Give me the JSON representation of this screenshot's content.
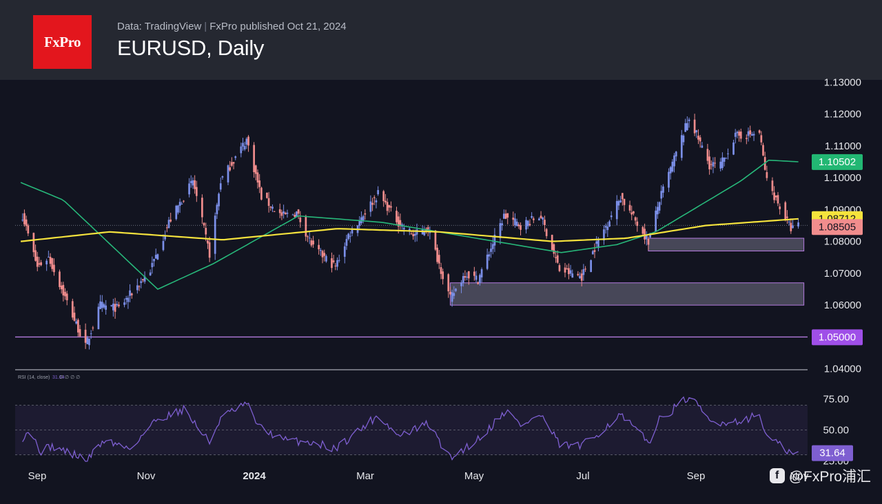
{
  "header": {
    "logo_text": "FxPro",
    "source": "Data: TradingView",
    "published": "FxPro published Oct 21, 2024",
    "title": "EURUSD, Daily"
  },
  "watermark": "@FxPro浦汇",
  "colors": {
    "background": "#121420",
    "header_bg": "#252831",
    "up_candle": "#7b8fe8",
    "down_candle": "#f08c8c",
    "ma_long": "#f4e23d",
    "ma_short": "#27b87a",
    "zone": "#b57be0",
    "rsi_line": "#7e5fd1",
    "logo_red": "#e3161d"
  },
  "chart_data": {
    "type": "candlestick",
    "title": "EURUSD, Daily",
    "price_axis": {
      "ylim": [
        1.0395,
        1.1305
      ],
      "ticks": [
        "1.04000",
        "1.05000",
        "1.06000",
        "1.07000",
        "1.08000",
        "1.09000",
        "1.10000",
        "1.11000",
        "1.12000",
        "1.13000"
      ]
    },
    "x_labels": [
      "Sep",
      "Nov",
      "2024",
      "Mar",
      "May",
      "Jul",
      "Sep",
      "Nov"
    ],
    "price_anchors": [
      [
        "2023-08-29",
        1.0882
      ],
      [
        "2023-09-06",
        1.072
      ],
      [
        "2023-09-12",
        1.075
      ],
      [
        "2023-10-02",
        1.047
      ],
      [
        "2023-10-10",
        1.06
      ],
      [
        "2023-10-20",
        1.059
      ],
      [
        "2023-11-06",
        1.071
      ],
      [
        "2023-11-16",
        1.086
      ],
      [
        "2023-11-29",
        1.099
      ],
      [
        "2023-12-08",
        1.076
      ],
      [
        "2023-12-14",
        1.099
      ],
      [
        "2023-12-28",
        1.112
      ],
      [
        "2024-01-05",
        1.094
      ],
      [
        "2024-01-16",
        1.088
      ],
      [
        "2024-01-24",
        1.089
      ],
      [
        "2024-02-02",
        1.078
      ],
      [
        "2024-02-14",
        1.072
      ],
      [
        "2024-02-21",
        1.082
      ],
      [
        "2024-03-08",
        1.095
      ],
      [
        "2024-03-19",
        1.086
      ],
      [
        "2024-03-27",
        1.082
      ],
      [
        "2024-04-04",
        1.084
      ],
      [
        "2024-04-16",
        1.062
      ],
      [
        "2024-04-24",
        1.07
      ],
      [
        "2024-05-01",
        1.068
      ],
      [
        "2024-05-15",
        1.088
      ],
      [
        "2024-05-24",
        1.085
      ],
      [
        "2024-06-04",
        1.088
      ],
      [
        "2024-06-14",
        1.071
      ],
      [
        "2024-06-26",
        1.069
      ],
      [
        "2024-07-03",
        1.078
      ],
      [
        "2024-07-17",
        1.094
      ],
      [
        "2024-08-01",
        1.08
      ],
      [
        "2024-08-07",
        1.093
      ],
      [
        "2024-08-23",
        1.119
      ],
      [
        "2024-09-03",
        1.104
      ],
      [
        "2024-09-09",
        1.104
      ],
      [
        "2024-09-17",
        1.113
      ],
      [
        "2024-09-30",
        1.114
      ],
      [
        "2024-10-04",
        1.099
      ],
      [
        "2024-10-17",
        1.084
      ],
      [
        "2024-10-21",
        1.085
      ]
    ],
    "ma_long_anchors": [
      [
        "2023-08-28",
        1.08
      ],
      [
        "2023-10-15",
        1.083
      ],
      [
        "2023-12-15",
        1.0805
      ],
      [
        "2024-02-15",
        1.084
      ],
      [
        "2024-04-10",
        1.083
      ],
      [
        "2024-06-10",
        1.08
      ],
      [
        "2024-07-20",
        1.081
      ],
      [
        "2024-09-01",
        1.085
      ],
      [
        "2024-10-21",
        1.0871
      ]
    ],
    "ma_short_anchors": [
      [
        "2023-08-28",
        1.0985
      ],
      [
        "2023-09-20",
        1.093
      ],
      [
        "2023-11-10",
        1.065
      ],
      [
        "2023-12-10",
        1.073
      ],
      [
        "2024-01-25",
        1.088
      ],
      [
        "2024-03-10",
        1.086
      ],
      [
        "2024-04-25",
        1.0815
      ],
      [
        "2024-06-15",
        1.0765
      ],
      [
        "2024-07-15",
        1.079
      ],
      [
        "2024-08-05",
        1.083
      ],
      [
        "2024-09-20",
        1.099
      ],
      [
        "2024-10-05",
        1.1055
      ],
      [
        "2024-10-21",
        1.105
      ]
    ],
    "levels": [
      {
        "price": 1.05,
        "label": "1.05000"
      }
    ],
    "zones": [
      {
        "from": "2024-04-16",
        "to": "2024-10-24",
        "low": 1.06,
        "high": 1.067
      },
      {
        "from": "2024-08-01",
        "to": "2024-10-24",
        "low": 1.077,
        "high": 1.081
      }
    ],
    "last_values": {
      "ma_short": {
        "value": 1.10502,
        "label": "1.10502"
      },
      "ma_long": {
        "value": 1.08712,
        "label": "1.08712"
      },
      "close": {
        "value": 1.08505,
        "label": "1.08505"
      }
    },
    "rsi": {
      "title": "RSI (14, close)",
      "value_text": "31.64",
      "extra_text": "∅ ∅ ∅ ∅",
      "ylim": [
        22,
        82
      ],
      "band": [
        30,
        70
      ],
      "ticks": [
        "25.00",
        "50.00",
        "75.00"
      ],
      "last": {
        "value": 31.64,
        "label": "31.64"
      },
      "anchors": [
        [
          "2023-08-28",
          42
        ],
        [
          "2023-09-01",
          50
        ],
        [
          "2023-09-08",
          33
        ],
        [
          "2023-09-14",
          37
        ],
        [
          "2023-10-03",
          26
        ],
        [
          "2023-10-12",
          42
        ],
        [
          "2023-10-26",
          35
        ],
        [
          "2023-11-09",
          58
        ],
        [
          "2023-11-24",
          67
        ],
        [
          "2023-12-08",
          40
        ],
        [
          "2023-12-14",
          60
        ],
        [
          "2023-12-28",
          71
        ],
        [
          "2024-01-04",
          52
        ],
        [
          "2024-01-17",
          42
        ],
        [
          "2024-02-02",
          40
        ],
        [
          "2024-02-14",
          35
        ],
        [
          "2024-03-08",
          62
        ],
        [
          "2024-03-19",
          45
        ],
        [
          "2024-04-04",
          55
        ],
        [
          "2024-04-16",
          27
        ],
        [
          "2024-05-03",
          45
        ],
        [
          "2024-05-16",
          66
        ],
        [
          "2024-05-24",
          54
        ],
        [
          "2024-06-04",
          62
        ],
        [
          "2024-06-14",
          38
        ],
        [
          "2024-06-26",
          37
        ],
        [
          "2024-07-17",
          62
        ],
        [
          "2024-08-01",
          40
        ],
        [
          "2024-08-07",
          58
        ],
        [
          "2024-08-23",
          77
        ],
        [
          "2024-09-04",
          56
        ],
        [
          "2024-09-17",
          57
        ],
        [
          "2024-09-30",
          62
        ],
        [
          "2024-10-04",
          45
        ],
        [
          "2024-10-18",
          30
        ],
        [
          "2024-10-21",
          31.64
        ]
      ]
    }
  }
}
